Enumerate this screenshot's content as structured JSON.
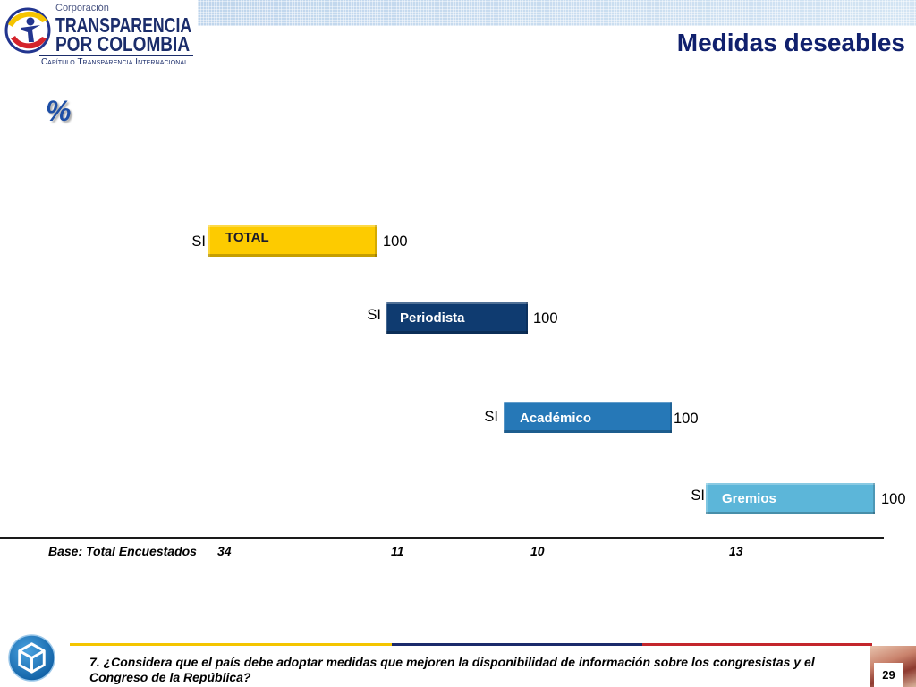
{
  "header": {
    "logo": {
      "corporacion": "Corporación",
      "name_line1": "TRANSPARENCIA",
      "name_line2": "POR COLOMBIA",
      "tagline": "Capítulo Transparencia Internacional"
    },
    "title": "Medidas deseables"
  },
  "icons": {
    "header_logo": "transparencia-emblem-icon",
    "footer_logo": "cube-emblem-icon"
  },
  "chart_data": {
    "type": "bar",
    "orientation": "horizontal",
    "unit": "%",
    "categories": [
      "TOTAL",
      "Periodista",
      "Académico",
      "Gremios"
    ],
    "series": [
      {
        "name": "SI",
        "values": [
          100,
          100,
          100,
          100
        ]
      }
    ],
    "xlim": [
      0,
      100
    ],
    "grid": false,
    "colors": [
      "#FDCB00",
      "#0F3B70",
      "#2678B7",
      "#5CB6D9"
    ],
    "label_colors": [
      "#1A1A2E",
      "#FFFFFF",
      "#FFFFFF",
      "#FFFFFF"
    ],
    "base": {
      "label": "Base: Total Encuestados",
      "values": [
        34,
        11,
        10,
        13
      ]
    }
  },
  "footer": {
    "question_lines": [
      "7. ¿Considera que el país debe adoptar medidas que mejoren la disponibilidad de información sobre los congresistas y el",
      "Congreso de la República?"
    ],
    "page_number": "29",
    "rule_colors": [
      "#F4C500",
      "#1B2A6B",
      "#C3262C"
    ]
  }
}
